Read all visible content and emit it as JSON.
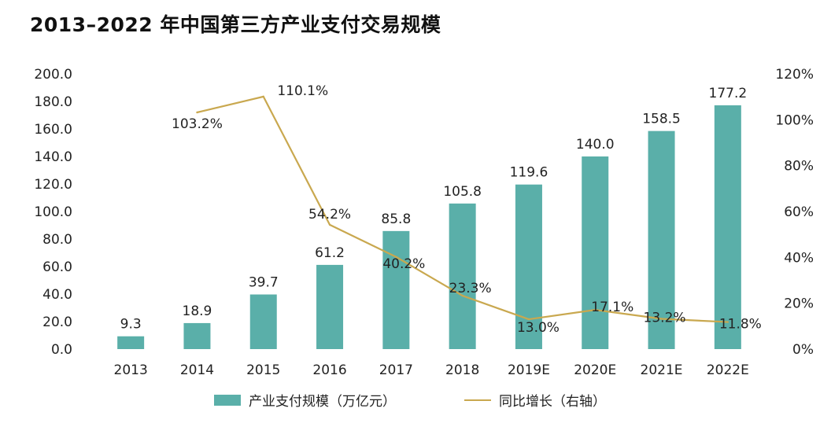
{
  "chart_data": {
    "type": "bar",
    "title": "2013–2022 年中国第三方产业支付交易规模",
    "categories": [
      "2013",
      "2014",
      "2015",
      "2016",
      "2017",
      "2018",
      "2019E",
      "2020E",
      "2021E",
      "2022E"
    ],
    "series": [
      {
        "name": "产业支付规模（万亿元）",
        "type": "bar",
        "axis": "left",
        "values": [
          9.3,
          18.9,
          39.7,
          61.2,
          85.8,
          105.8,
          119.6,
          140.0,
          158.5,
          177.2
        ],
        "labels": [
          "9.3",
          "18.9",
          "39.7",
          "61.2",
          "85.8",
          "105.8",
          "119.6",
          "140.0",
          "158.5",
          "177.2"
        ]
      },
      {
        "name": "同比增长（右轴）",
        "type": "line",
        "axis": "right",
        "values": [
          null,
          103.2,
          110.1,
          54.2,
          40.2,
          23.3,
          13.0,
          17.1,
          13.2,
          11.8
        ],
        "labels": [
          "",
          "103.2%",
          "110.1%",
          "54.2%",
          "40.2%",
          "23.3%",
          "13.0%",
          "17.1%",
          "13.2%",
          "11.8%"
        ]
      }
    ],
    "y_left": {
      "ylim": [
        0,
        200
      ],
      "ticks": [
        "0.0",
        "20.0",
        "40.0",
        "60.0",
        "80.0",
        "100.0",
        "120.0",
        "140.0",
        "160.0",
        "180.0",
        "200.0"
      ]
    },
    "y_right": {
      "ylim": [
        0,
        120
      ],
      "ticks": [
        "0%",
        "20%",
        "40%",
        "60%",
        "80%",
        "100%",
        "120%"
      ]
    },
    "grid": false,
    "legend_position": "bottom",
    "colors": {
      "bar": "#5aafa9",
      "line": "#c9a84f"
    }
  }
}
